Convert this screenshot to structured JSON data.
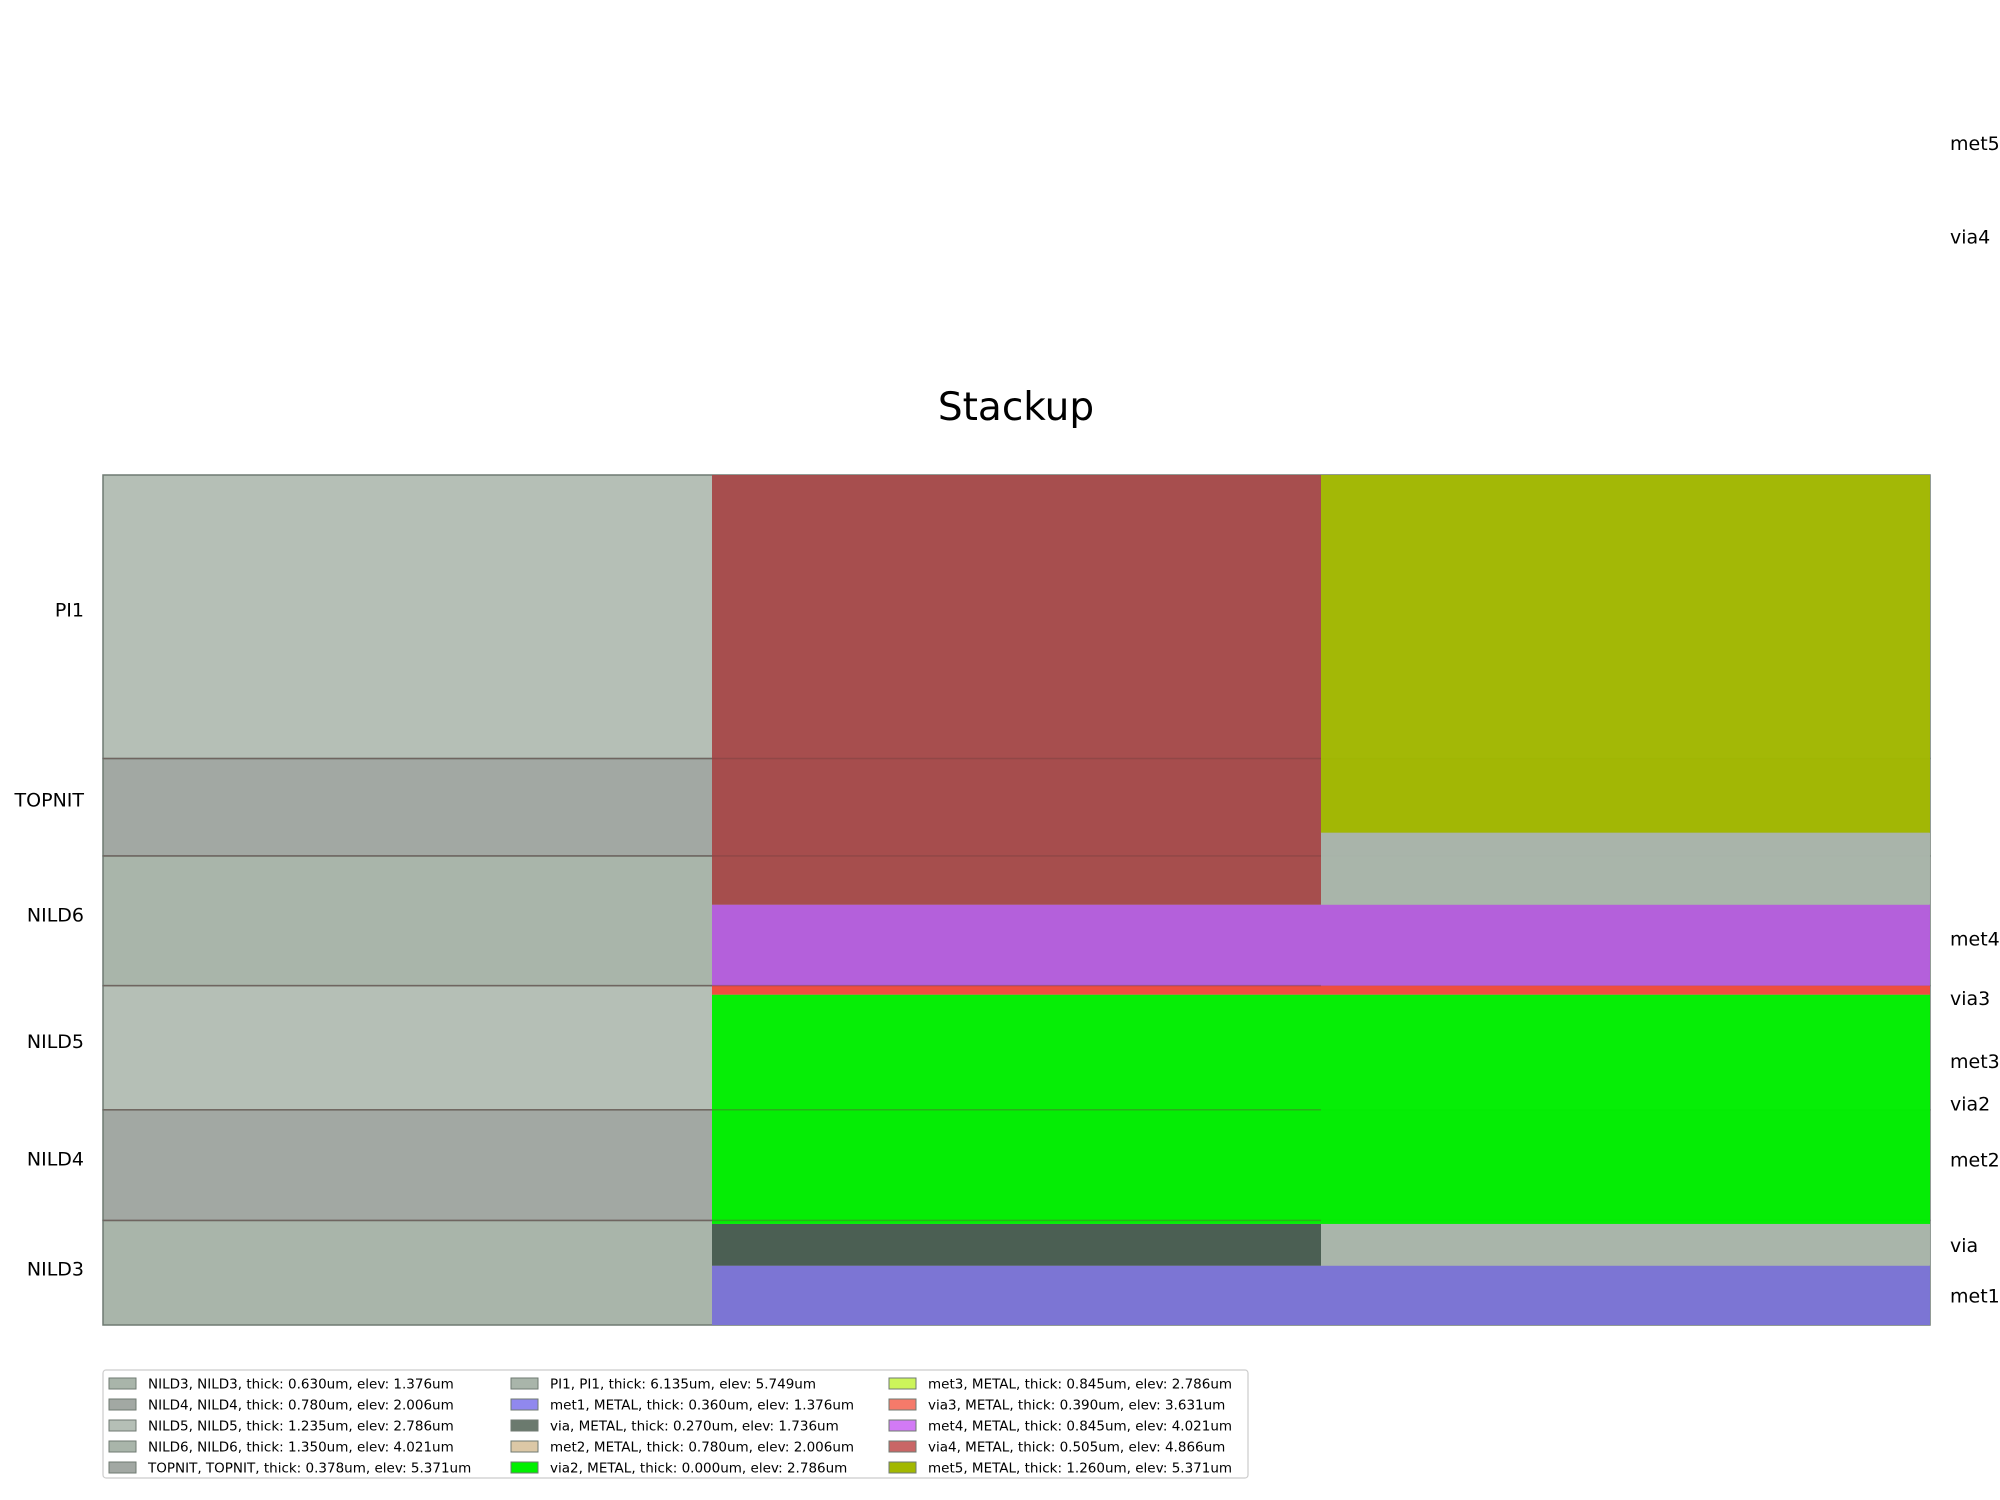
{
  "chart_data": {
    "type": "stackup",
    "title": "Stackup",
    "ylim": [
      0.746,
      9.199
    ],
    "x_columns": 3,
    "dielectric_layers": [
      {
        "name": "NILD3",
        "bottom": 0.746,
        "top": 1.786,
        "color": "#a9b5aa"
      },
      {
        "name": "NILD4",
        "bottom": 1.786,
        "top": 2.886,
        "color": "#a2a8a3"
      },
      {
        "name": "NILD5",
        "bottom": 2.886,
        "top": 4.121,
        "color": "#b5bfb6"
      },
      {
        "name": "NILD6",
        "bottom": 4.121,
        "top": 5.411,
        "color": "#a9b5aa"
      },
      {
        "name": "TOPNIT",
        "bottom": 5.411,
        "top": 6.38,
        "color": "#a2a8a3"
      },
      {
        "name": "PI1",
        "bottom": 6.38,
        "top": 9.199,
        "color": "#b5bfb6"
      }
    ],
    "metal_layers": [
      {
        "name": "met1",
        "col_start": 1,
        "col_end": 3,
        "bottom": 0.746,
        "top": 1.336,
        "color": "#7b73d6"
      },
      {
        "name": "via",
        "col_start": 1,
        "col_end": 2,
        "bottom": 1.336,
        "top": 1.751,
        "color": "#485c51"
      },
      {
        "name": "via",
        "col_start": 2,
        "col_end": 3,
        "bottom": 1.336,
        "top": 1.751,
        "color": "#a9b5aa"
      },
      {
        "name": "met2",
        "col_start": 1,
        "col_end": 3,
        "bottom": 1.751,
        "top": 4.031,
        "color": "#00f000"
      },
      {
        "name": "via3",
        "col_start": 1,
        "col_end": 3,
        "bottom": 4.031,
        "top": 4.121,
        "color": "#f04a3c"
      },
      {
        "name": "met4",
        "col_start": 1,
        "col_end": 3,
        "bottom": 4.121,
        "top": 4.926,
        "color": "#b55ddd"
      },
      {
        "name": "via4",
        "col_start": 1,
        "col_end": 2,
        "bottom": 4.926,
        "top": 9.199,
        "color": "#a64a4a"
      },
      {
        "name": "met5",
        "col_start": 2,
        "col_end": 3,
        "bottom": 5.641,
        "top": 9.199,
        "color": "#a2b800"
      },
      {
        "name": "NILD6",
        "col_start": 2,
        "col_end": 3,
        "bottom": 4.926,
        "top": 5.641,
        "color": "#a9b5aa"
      }
    ],
    "left_labels": [
      {
        "text": "PI1",
        "y": 7.86
      },
      {
        "text": "TOPNIT",
        "y": 5.97
      },
      {
        "text": "NILD6",
        "y": 4.83
      },
      {
        "text": "NILD5",
        "y": 3.57
      },
      {
        "text": "NILD4",
        "y": 2.4
      },
      {
        "text": "NILD3",
        "y": 1.31
      }
    ],
    "right_labels": [
      {
        "text": "met5",
        "y": 12.5
      },
      {
        "text": "via4",
        "y": 11.57
      },
      {
        "text": "met4",
        "y": 4.59
      },
      {
        "text": "via3",
        "y": 4.0
      },
      {
        "text": "met3",
        "y": 3.37
      },
      {
        "text": "via2",
        "y": 2.95
      },
      {
        "text": "met2",
        "y": 2.39
      },
      {
        "text": "via",
        "y": 1.54
      },
      {
        "text": "met1",
        "y": 1.04
      }
    ],
    "legend": [
      {
        "label": "NILD3, NILD3, thick: 0.630um, elev: 1.376um",
        "color": "#a9b5aa"
      },
      {
        "label": "NILD4, NILD4, thick: 0.780um, elev: 2.006um",
        "color": "#a2a8a3"
      },
      {
        "label": "NILD5, NILD5, thick: 1.235um, elev: 2.786um",
        "color": "#b5bfb6"
      },
      {
        "label": "NILD6, NILD6, thick: 1.350um, elev: 4.021um",
        "color": "#a9b5aa"
      },
      {
        "label": "TOPNIT, TOPNIT, thick: 0.378um, elev: 5.371um",
        "color": "#a2a8a3"
      },
      {
        "label": "PI1, PI1, thick: 6.135um, elev: 5.749um",
        "color": "#a9b5aa"
      },
      {
        "label": "met1, METAL, thick: 0.360um, elev: 1.376um",
        "color": "#9088ee"
      },
      {
        "label": "via, METAL, thick: 0.270um, elev: 1.736um",
        "color": "#6b7a6e"
      },
      {
        "label": "met2, METAL, thick: 0.780um, elev: 2.006um",
        "color": "#dcc8a6"
      },
      {
        "label": "via2, METAL, thick: 0.000um, elev: 2.786um",
        "color": "#00f000"
      },
      {
        "label": "met3, METAL, thick: 0.845um, elev: 2.786um",
        "color": "#ccf55a"
      },
      {
        "label": "via3, METAL, thick: 0.390um, elev: 3.631um",
        "color": "#f57a6a"
      },
      {
        "label": "met4, METAL, thick: 0.845um, elev: 4.021um",
        "color": "#d27af5"
      },
      {
        "label": "via4, METAL, thick: 0.505um, elev: 4.866um",
        "color": "#c96666"
      },
      {
        "label": "met5, METAL, thick: 1.260um, elev: 5.371um",
        "color": "#a2b800"
      }
    ],
    "legend_placement": "bottom-left",
    "grid": false
  }
}
